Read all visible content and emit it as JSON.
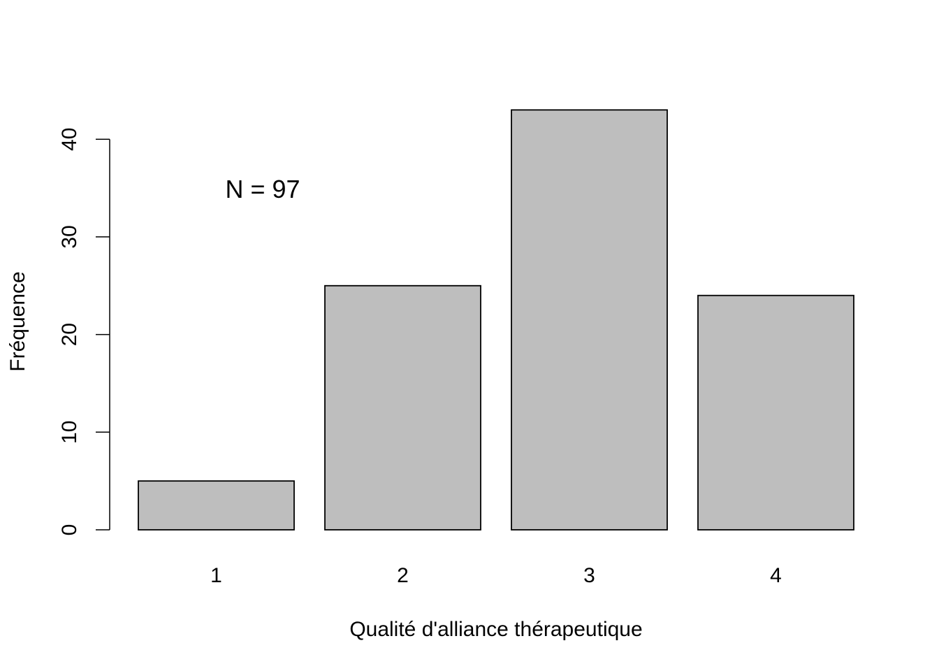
{
  "chart_data": {
    "type": "bar",
    "categories": [
      "1",
      "2",
      "3",
      "4"
    ],
    "values": [
      5,
      25,
      43,
      24
    ],
    "title": "",
    "xlabel": "Qualité d'alliance thérapeutique",
    "ylabel": "Fréquence",
    "ylim": [
      0,
      43
    ],
    "yticks": [
      0,
      10,
      20,
      30,
      40
    ],
    "annotation": "N = 97",
    "grid": false,
    "bar_color": "#bebebe",
    "bar_edge_color": "#000000"
  }
}
